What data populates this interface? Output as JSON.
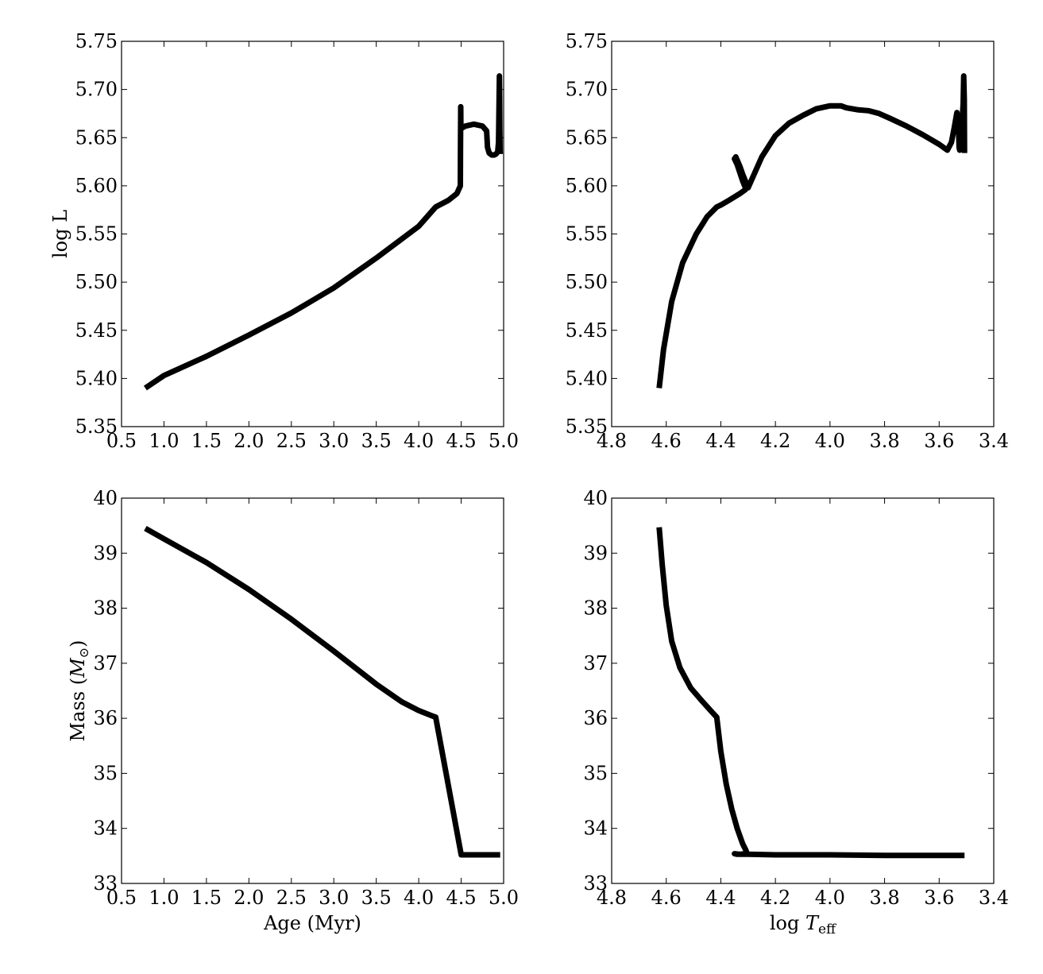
{
  "chart_data": [
    {
      "type": "line",
      "panel": "top-left",
      "xlabel": "",
      "ylabel": "log L",
      "xlim": [
        0.5,
        5.0
      ],
      "ylim": [
        5.35,
        5.75
      ],
      "x_reversed": false,
      "xticks": [
        "0.5",
        "1.0",
        "1.5",
        "2.0",
        "2.5",
        "3.0",
        "3.5",
        "4.0",
        "4.5",
        "5.0"
      ],
      "yticks": [
        "5.35",
        "5.40",
        "5.45",
        "5.50",
        "5.55",
        "5.60",
        "5.65",
        "5.70",
        "5.75"
      ],
      "grid": false,
      "series": [
        {
          "x": [
            0.78,
            1.0,
            1.5,
            2.0,
            2.5,
            3.0,
            3.5,
            4.0,
            4.2,
            4.35,
            4.45,
            4.49,
            4.492,
            4.495,
            4.497,
            4.51,
            4.55,
            4.65,
            4.75,
            4.8,
            4.81,
            4.83,
            4.86,
            4.89,
            4.91,
            4.93,
            4.94,
            4.95,
            4.953,
            4.955,
            4.958,
            4.96
          ],
          "y": [
            5.39,
            5.403,
            5.423,
            5.445,
            5.468,
            5.494,
            5.525,
            5.558,
            5.578,
            5.585,
            5.592,
            5.6,
            5.64,
            5.682,
            5.66,
            5.66,
            5.662,
            5.664,
            5.662,
            5.657,
            5.64,
            5.634,
            5.632,
            5.632,
            5.633,
            5.635,
            5.645,
            5.714,
            5.69,
            5.66,
            5.637,
            5.633
          ]
        }
      ]
    },
    {
      "type": "line",
      "panel": "top-right",
      "xlabel": "",
      "ylabel": "",
      "xlim": [
        4.8,
        3.4
      ],
      "ylim": [
        5.35,
        5.75
      ],
      "x_reversed": true,
      "xticks": [
        "4.8",
        "4.6",
        "4.4",
        "4.2",
        "4.0",
        "3.8",
        "3.6",
        "3.4"
      ],
      "yticks": [
        "5.35",
        "5.40",
        "5.45",
        "5.50",
        "5.55",
        "5.60",
        "5.65",
        "5.70",
        "5.75"
      ],
      "grid": false,
      "series": [
        {
          "x": [
            4.626,
            4.61,
            4.58,
            4.54,
            4.49,
            4.45,
            4.415,
            4.4,
            4.37,
            4.33,
            4.31,
            4.31,
            4.32,
            4.34,
            4.35,
            4.345,
            4.33,
            4.32,
            4.3,
            4.25,
            4.2,
            4.15,
            4.1,
            4.05,
            4.0,
            3.96,
            3.94,
            3.9,
            3.86,
            3.82,
            3.78,
            3.72,
            3.66,
            3.6,
            3.57,
            3.555,
            3.545,
            3.535,
            3.53,
            3.528,
            3.527,
            3.525,
            3.523,
            3.52,
            3.512,
            3.51,
            3.508,
            3.507
          ],
          "y": [
            5.39,
            5.43,
            5.48,
            5.52,
            5.55,
            5.568,
            5.578,
            5.58,
            5.585,
            5.592,
            5.596,
            5.598,
            5.605,
            5.622,
            5.628,
            5.63,
            5.62,
            5.612,
            5.598,
            5.63,
            5.652,
            5.665,
            5.673,
            5.68,
            5.683,
            5.683,
            5.681,
            5.679,
            5.678,
            5.675,
            5.67,
            5.662,
            5.653,
            5.643,
            5.637,
            5.645,
            5.66,
            5.676,
            5.665,
            5.65,
            5.64,
            5.637,
            5.64,
            5.65,
            5.685,
            5.714,
            5.69,
            5.634
          ]
        }
      ]
    },
    {
      "type": "line",
      "panel": "bottom-left",
      "xlabel": "Age (Myr)",
      "ylabel": "Mass (M⊙)",
      "xlim": [
        0.5,
        5.0
      ],
      "ylim": [
        33,
        40
      ],
      "x_reversed": false,
      "xticks": [
        "0.5",
        "1.0",
        "1.5",
        "2.0",
        "2.5",
        "3.0",
        "3.5",
        "4.0",
        "4.5",
        "5.0"
      ],
      "yticks": [
        "33",
        "34",
        "35",
        "36",
        "37",
        "38",
        "39",
        "40"
      ],
      "grid": false,
      "series": [
        {
          "x": [
            0.78,
            1.0,
            1.5,
            2.0,
            2.5,
            3.0,
            3.5,
            3.8,
            4.0,
            4.15,
            4.2,
            4.5,
            4.6,
            4.8,
            4.96
          ],
          "y": [
            39.45,
            39.26,
            38.83,
            38.34,
            37.8,
            37.22,
            36.62,
            36.3,
            36.14,
            36.05,
            36.02,
            33.52,
            33.52,
            33.52,
            33.52
          ]
        }
      ]
    },
    {
      "type": "line",
      "panel": "bottom-right",
      "xlabel": "log T_eff",
      "ylabel": "",
      "xlim": [
        4.8,
        3.4
      ],
      "ylim": [
        33,
        40
      ],
      "x_reversed": true,
      "xticks": [
        "4.8",
        "4.6",
        "4.4",
        "4.2",
        "4.0",
        "3.8",
        "3.6",
        "3.4"
      ],
      "yticks": [
        "33",
        "34",
        "35",
        "36",
        "37",
        "38",
        "39",
        "40"
      ],
      "grid": false,
      "series": [
        {
          "x": [
            4.626,
            4.615,
            4.6,
            4.58,
            4.55,
            4.51,
            4.47,
            4.43,
            4.415,
            4.4,
            4.38,
            4.36,
            4.34,
            4.32,
            4.31,
            4.305,
            4.31,
            4.33,
            4.35,
            4.34,
            4.3,
            4.2,
            4.0,
            3.8,
            3.6,
            3.507
          ],
          "y": [
            39.47,
            38.8,
            38.05,
            37.4,
            36.92,
            36.55,
            36.32,
            36.1,
            36.02,
            35.4,
            34.8,
            34.35,
            34.0,
            33.72,
            33.62,
            33.56,
            33.54,
            33.53,
            33.54,
            33.53,
            33.53,
            33.52,
            33.52,
            33.51,
            33.51,
            33.51
          ]
        }
      ]
    }
  ]
}
